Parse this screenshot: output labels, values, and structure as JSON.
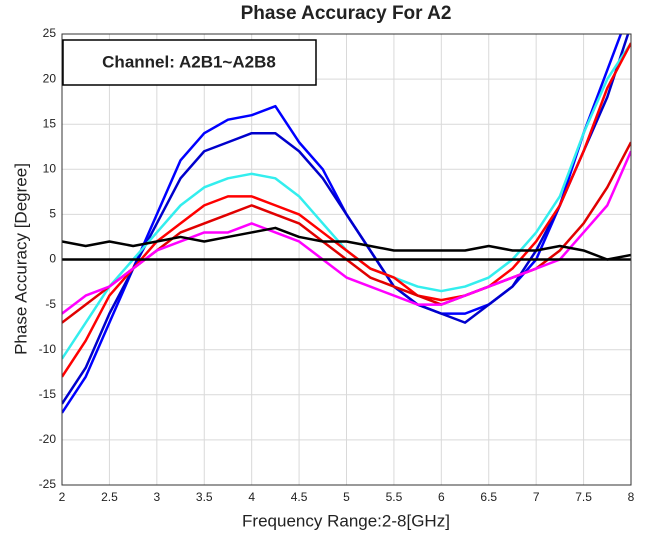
{
  "chart_data": {
    "type": "line",
    "title": "Phase Accuracy For A2",
    "xlabel": "Frequency Range:2-8[GHz]",
    "ylabel": "Phase Accuracy [Degree]",
    "annotation": "Channel: A2B1~A2B8",
    "x": [
      2,
      2.25,
      2.5,
      2.75,
      3,
      3.25,
      3.5,
      3.75,
      4,
      4.25,
      4.5,
      4.75,
      5,
      5.25,
      5.5,
      5.75,
      6,
      6.25,
      6.5,
      6.75,
      7,
      7.25,
      7.5,
      7.75,
      8
    ],
    "series": [
      {
        "color": "#0000ff",
        "values": [
          -17,
          -13,
          -7,
          -1,
          5,
          11,
          14,
          15.5,
          16,
          17,
          13,
          10,
          5,
          1,
          -3,
          -5,
          -6,
          -6,
          -5,
          -3,
          0,
          6,
          14,
          21,
          28
        ]
      },
      {
        "color": "#0000cc",
        "values": [
          -16,
          -12,
          -6,
          -1,
          4,
          9,
          12,
          13,
          14,
          14,
          12,
          9,
          5,
          1,
          -3,
          -5,
          -6,
          -7,
          -5,
          -3,
          1,
          6,
          12,
          18,
          26
        ]
      },
      {
        "color": "#33eeee",
        "values": [
          -11,
          -7,
          -3,
          0,
          3,
          6,
          8,
          9,
          9.5,
          9,
          7,
          4,
          1,
          -1,
          -2,
          -3,
          -3.5,
          -3,
          -2,
          0,
          3,
          7,
          14,
          20,
          24
        ]
      },
      {
        "color": "#ff0000",
        "values": [
          -13,
          -9,
          -4,
          -1,
          2,
          4,
          6,
          7,
          7,
          6,
          5,
          3,
          1,
          -1,
          -2,
          -4,
          -4.5,
          -4,
          -3,
          -1,
          2,
          6,
          12,
          19,
          24
        ]
      },
      {
        "color": "#e00000",
        "values": [
          -7,
          -5,
          -3,
          -1,
          1,
          3,
          4,
          5,
          6,
          5,
          4,
          2,
          0,
          -2,
          -3,
          -4,
          -5,
          -4,
          -3,
          -2,
          -1,
          1,
          4,
          8,
          13
        ]
      },
      {
        "color": "#ff00ff",
        "values": [
          -6,
          -4,
          -3,
          -1,
          1,
          2,
          3,
          3,
          4,
          3,
          2,
          0,
          -2,
          -3,
          -4,
          -5,
          -5,
          -4,
          -3,
          -2,
          -1,
          0,
          3,
          6,
          12
        ]
      },
      {
        "color": "#000000",
        "values": [
          2,
          1.5,
          2,
          1.5,
          2,
          2.5,
          2,
          2.5,
          3,
          3.5,
          2.5,
          2,
          2,
          1.5,
          1,
          1,
          1,
          1,
          1.5,
          1,
          1,
          1.5,
          1,
          0,
          0.5
        ]
      },
      {
        "color": "#000000",
        "values": [
          0,
          0,
          0,
          0,
          0,
          0,
          0,
          0,
          0,
          0,
          0,
          0,
          0,
          0,
          0,
          0,
          0,
          0,
          0,
          0,
          0,
          0,
          0,
          0,
          0
        ]
      }
    ],
    "xlim": [
      2,
      8
    ],
    "xticks": [
      2,
      2.5,
      3,
      3.5,
      4,
      4.5,
      5,
      5.5,
      6,
      6.5,
      7,
      7.5,
      8
    ],
    "ylim": [
      -25,
      25
    ],
    "yticks": [
      -25,
      -20,
      -15,
      -10,
      -5,
      0,
      5,
      10,
      15,
      20,
      25
    ],
    "grid": true
  }
}
